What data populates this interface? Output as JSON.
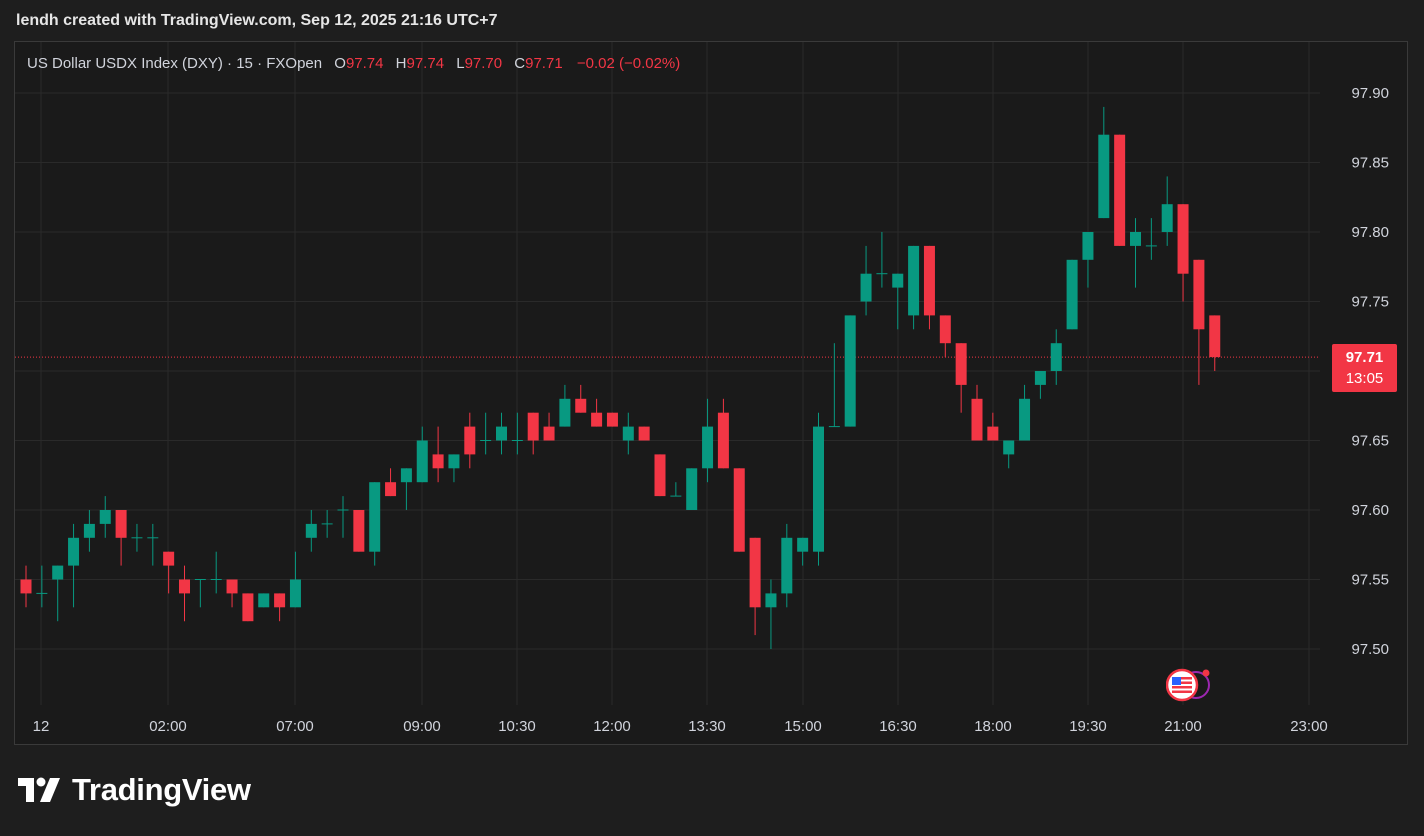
{
  "header": {
    "attribution": "lendh created with TradingView.com, Sep 12, 2025 21:16 UTC+7"
  },
  "legend": {
    "symbol": "US Dollar USDX Index (DXY) · 15 · FXOpen",
    "open_label": "O",
    "open": "97.74",
    "high_label": "H",
    "high": "97.74",
    "low_label": "L",
    "low": "97.70",
    "close_label": "C",
    "close": "97.71",
    "change": "−0.02 (−0.02%)"
  },
  "price_tag": {
    "price": "97.71",
    "countdown": "13:05"
  },
  "logo": {
    "text": "TradingView"
  },
  "icons": {
    "event": "us-flag-icon",
    "logo": "tradingview-logo-icon"
  },
  "colors": {
    "up": "#089981",
    "down": "#f23645",
    "background": "#1a1a1a",
    "grid": "#2a2a2a"
  },
  "chart_data": {
    "type": "candlestick",
    "y_ticks": [
      "97.90",
      "97.85",
      "97.80",
      "97.75",
      "97.65",
      "97.60",
      "97.55",
      "97.50"
    ],
    "x_ticks": [
      "12",
      "02:00",
      "07:00",
      "09:00",
      "10:30",
      "12:00",
      "13:30",
      "15:00",
      "16:30",
      "18:00",
      "19:30",
      "21:00",
      "23:00"
    ],
    "ylim": [
      97.465,
      97.925
    ],
    "current_price": 97.71,
    "grid": true,
    "ohlc": [
      [
        97.55,
        97.56,
        97.53,
        97.54
      ],
      [
        97.54,
        97.56,
        97.53,
        97.54
      ],
      [
        97.55,
        97.56,
        97.52,
        97.56
      ],
      [
        97.56,
        97.59,
        97.53,
        97.58
      ],
      [
        97.58,
        97.6,
        97.57,
        97.59
      ],
      [
        97.59,
        97.61,
        97.58,
        97.6
      ],
      [
        97.6,
        97.6,
        97.56,
        97.58
      ],
      [
        97.58,
        97.59,
        97.57,
        97.58
      ],
      [
        97.58,
        97.59,
        97.56,
        97.58
      ],
      [
        97.57,
        97.57,
        97.54,
        97.56
      ],
      [
        97.55,
        97.56,
        97.52,
        97.54
      ],
      [
        97.55,
        97.55,
        97.53,
        97.55
      ],
      [
        97.55,
        97.57,
        97.54,
        97.55
      ],
      [
        97.55,
        97.55,
        97.53,
        97.54
      ],
      [
        97.54,
        97.54,
        97.52,
        97.52
      ],
      [
        97.53,
        97.54,
        97.53,
        97.54
      ],
      [
        97.54,
        97.54,
        97.52,
        97.53
      ],
      [
        97.53,
        97.57,
        97.53,
        97.55
      ],
      [
        97.58,
        97.6,
        97.57,
        97.59
      ],
      [
        97.59,
        97.6,
        97.58,
        97.59
      ],
      [
        97.6,
        97.61,
        97.58,
        97.6
      ],
      [
        97.6,
        97.6,
        97.57,
        97.57
      ],
      [
        97.57,
        97.62,
        97.56,
        97.62
      ],
      [
        97.62,
        97.63,
        97.61,
        97.61
      ],
      [
        97.62,
        97.63,
        97.6,
        97.63
      ],
      [
        97.62,
        97.66,
        97.62,
        97.65
      ],
      [
        97.64,
        97.66,
        97.62,
        97.63
      ],
      [
        97.63,
        97.64,
        97.62,
        97.64
      ],
      [
        97.66,
        97.67,
        97.63,
        97.64
      ],
      [
        97.65,
        97.67,
        97.64,
        97.65
      ],
      [
        97.65,
        97.67,
        97.64,
        97.66
      ],
      [
        97.65,
        97.67,
        97.64,
        97.65
      ],
      [
        97.67,
        97.67,
        97.64,
        97.65
      ],
      [
        97.66,
        97.67,
        97.65,
        97.65
      ],
      [
        97.66,
        97.69,
        97.66,
        97.68
      ],
      [
        97.68,
        97.69,
        97.67,
        97.67
      ],
      [
        97.67,
        97.68,
        97.66,
        97.66
      ],
      [
        97.67,
        97.67,
        97.66,
        97.66
      ],
      [
        97.65,
        97.67,
        97.64,
        97.66
      ],
      [
        97.66,
        97.66,
        97.65,
        97.65
      ],
      [
        97.64,
        97.64,
        97.61,
        97.61
      ],
      [
        97.61,
        97.62,
        97.61,
        97.61
      ],
      [
        97.6,
        97.63,
        97.6,
        97.63
      ],
      [
        97.63,
        97.68,
        97.62,
        97.66
      ],
      [
        97.67,
        97.68,
        97.63,
        97.63
      ],
      [
        97.63,
        97.63,
        97.57,
        97.57
      ],
      [
        97.58,
        97.58,
        97.51,
        97.53
      ],
      [
        97.53,
        97.55,
        97.5,
        97.54
      ],
      [
        97.54,
        97.59,
        97.53,
        97.58
      ],
      [
        97.57,
        97.58,
        97.56,
        97.58
      ],
      [
        97.57,
        97.67,
        97.56,
        97.66
      ],
      [
        97.66,
        97.72,
        97.66,
        97.66
      ],
      [
        97.66,
        97.74,
        97.66,
        97.74
      ],
      [
        97.75,
        97.79,
        97.74,
        97.77
      ],
      [
        97.77,
        97.8,
        97.76,
        97.77
      ],
      [
        97.76,
        97.77,
        97.73,
        97.77
      ],
      [
        97.74,
        97.79,
        97.73,
        97.79
      ],
      [
        97.79,
        97.79,
        97.73,
        97.74
      ],
      [
        97.74,
        97.74,
        97.71,
        97.72
      ],
      [
        97.72,
        97.72,
        97.67,
        97.69
      ],
      [
        97.68,
        97.69,
        97.65,
        97.65
      ],
      [
        97.66,
        97.67,
        97.65,
        97.65
      ],
      [
        97.64,
        97.65,
        97.63,
        97.65
      ],
      [
        97.65,
        97.69,
        97.65,
        97.68
      ],
      [
        97.69,
        97.7,
        97.68,
        97.7
      ],
      [
        97.7,
        97.73,
        97.69,
        97.72
      ],
      [
        97.73,
        97.78,
        97.73,
        97.78
      ],
      [
        97.78,
        97.8,
        97.76,
        97.8
      ],
      [
        97.81,
        97.89,
        97.81,
        97.87
      ],
      [
        97.87,
        97.87,
        97.79,
        97.79
      ],
      [
        97.79,
        97.81,
        97.76,
        97.8
      ],
      [
        97.79,
        97.81,
        97.78,
        97.79
      ],
      [
        97.8,
        97.84,
        97.79,
        97.82
      ],
      [
        97.82,
        97.82,
        97.75,
        97.77
      ],
      [
        97.78,
        97.78,
        97.69,
        97.73
      ],
      [
        97.74,
        97.74,
        97.7,
        97.71
      ]
    ]
  }
}
